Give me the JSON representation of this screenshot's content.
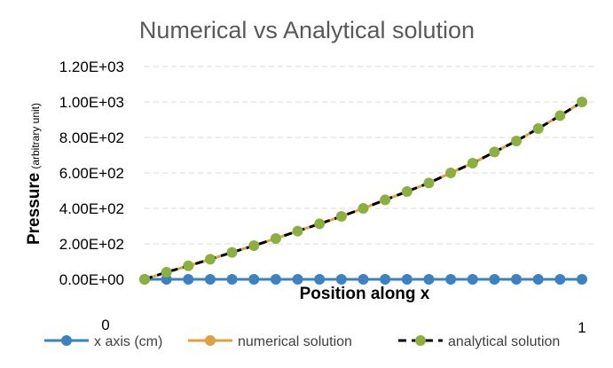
{
  "chart_data": {
    "type": "line",
    "title": "Numerical vs Analytical solution",
    "xlabel": "Position along x",
    "ylabel_main": "Pressure",
    "ylabel_sub": "(arbitrary unit)",
    "x_start_label": "0",
    "x_end_label": "1",
    "ylim": [
      0,
      1200
    ],
    "yticks": [
      0,
      200,
      400,
      600,
      800,
      1000,
      1200
    ],
    "ytick_labels": [
      "0.00E+00",
      "2.00E+02",
      "4.00E+02",
      "6.00E+02",
      "8.00E+02",
      "1.00E+03",
      "1.20E+03"
    ],
    "grid": true,
    "legend_position": "bottom",
    "x": [
      0,
      0.05,
      0.1,
      0.15,
      0.2,
      0.25,
      0.3,
      0.35,
      0.4,
      0.45,
      0.5,
      0.55,
      0.6,
      0.65,
      0.7,
      0.75,
      0.8,
      0.85,
      0.9,
      0.95,
      1
    ],
    "series": [
      {
        "name": "x axis (cm)",
        "color": "#3a82c4",
        "style": "line-marker",
        "values": [
          0,
          0,
          0,
          0,
          0,
          0,
          0,
          0,
          0,
          0,
          0,
          0,
          0,
          0,
          0,
          0,
          0,
          0,
          0,
          0,
          0
        ]
      },
      {
        "name": "numerical solution",
        "color": "#e0a040",
        "style": "line-marker",
        "values": [
          0,
          40,
          76,
          113,
          152,
          190,
          230,
          272,
          313,
          355,
          400,
          448,
          495,
          543,
          600,
          655,
          718,
          780,
          850,
          923,
          1000
        ]
      },
      {
        "name": "analytical solution",
        "color": "#000000",
        "marker_color": "#8cb040",
        "style": "dashed-marker",
        "values": [
          0,
          40,
          76,
          113,
          152,
          190,
          230,
          272,
          313,
          355,
          400,
          448,
          495,
          543,
          600,
          655,
          718,
          780,
          850,
          923,
          1000
        ]
      }
    ]
  }
}
